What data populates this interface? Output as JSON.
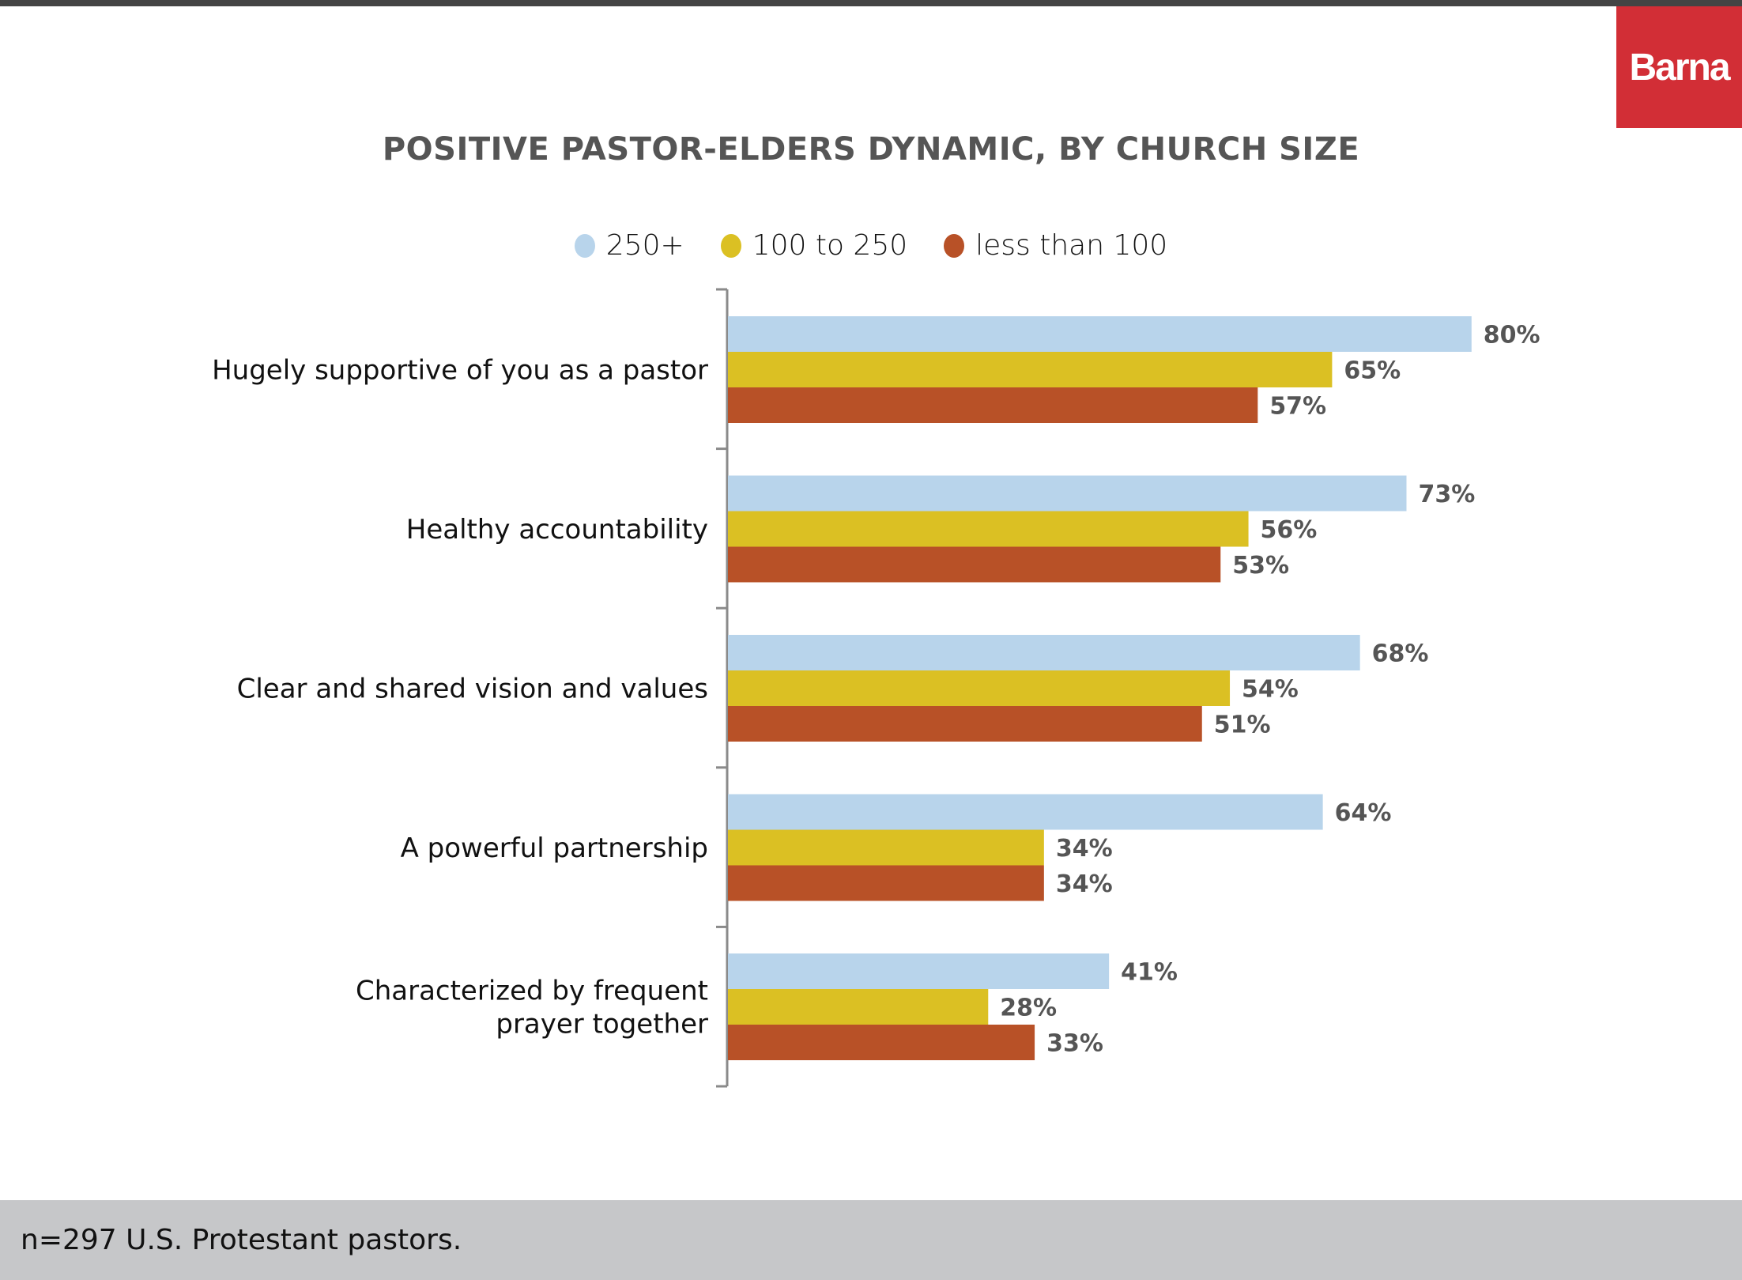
{
  "brand": {
    "logo_text": "Barna",
    "logo_color": "#d22e36"
  },
  "footer": {
    "note": "n=297 U.S. Protestant pastors."
  },
  "chart_data": {
    "type": "bar",
    "orientation": "horizontal",
    "title": "POSITIVE PASTOR-ELDERS DYNAMIC, BY CHURCH SIZE",
    "xlabel": "",
    "ylabel": "",
    "xlim": [
      0,
      100
    ],
    "grid": false,
    "legend_position": "top-center",
    "value_format": "percent",
    "categories": [
      "Hugely supportive of you as a pastor",
      "Healthy accountability",
      "Clear and shared vision and values",
      "A powerful partnership",
      "Characterized by frequent prayer together"
    ],
    "category_lines": [
      [
        "Hugely supportive of you as a pastor"
      ],
      [
        "Healthy accountability"
      ],
      [
        "Clear and shared vision and values"
      ],
      [
        "A powerful partnership"
      ],
      [
        "Characterized by frequent",
        "prayer together"
      ]
    ],
    "series": [
      {
        "name": "250+",
        "color": "#b8d4eb",
        "values": [
          80,
          73,
          68,
          64,
          41
        ]
      },
      {
        "name": "100 to 250",
        "color": "#dbc023",
        "values": [
          65,
          56,
          54,
          34,
          28
        ]
      },
      {
        "name": "less than 100",
        "color": "#b85127",
        "values": [
          57,
          53,
          51,
          34,
          33
        ]
      }
    ]
  }
}
